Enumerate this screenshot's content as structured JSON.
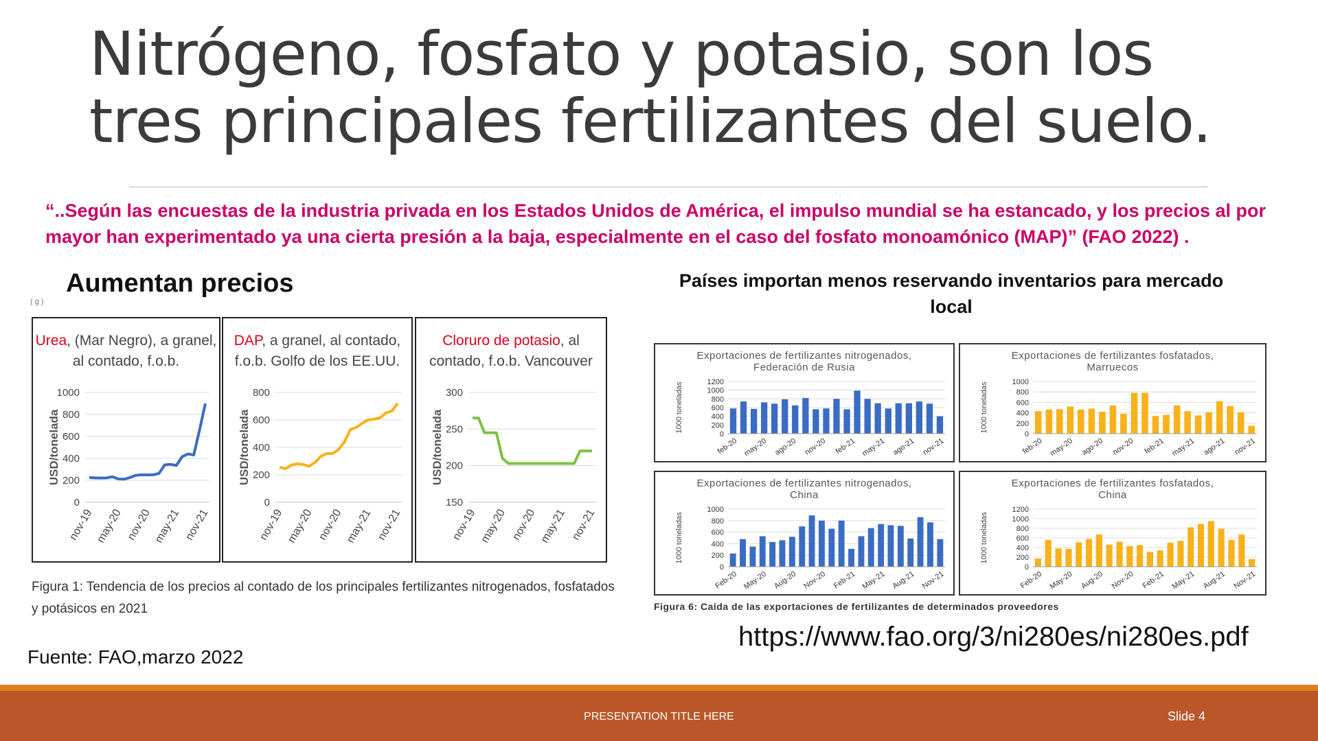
{
  "title": "Nitrógeno, fosfato y potasio, son los tres principales fertilizantes del suelo.",
  "quote": "“..Según las encuestas de la industria privada  en los Estados Unidos de América, el impulso mundial se ha estancado, y los precios al por mayor han experimentado ya una cierta presión a la baja, especialmente en el caso del fosfato monoamónico (MAP)” (FAO 2022) .",
  "left_heading": "Aumentan precios",
  "right_heading": "Países importan menos reservando inventarios para mercado local",
  "partial_mark": "( g   )",
  "left_caption": "Figura 1: Tendencia de los precios al contado de los principales fertilizantes nitrogenados, fosfatados y potásicos en 2021",
  "right_caption": "Figura 6: Caída de las exportaciones de fertilizantes de determinados proveedores",
  "url": "https://www.fao.org/3/ni280es/ni280es.pdf",
  "source": "Fuente: FAO,marzo 2022",
  "footer": {
    "title": "PRESENTATION TITLE HERE",
    "slide": "Slide 4"
  },
  "chart_data": [
    {
      "type": "line",
      "title_highlight": "Urea",
      "title_rest": ", (Mar Negro), a granel, al contado, f.o.b.",
      "ylabel": "USD/tonelada",
      "ylim": [
        0,
        1000
      ],
      "yticks": [
        "0",
        "200",
        "400",
        "600",
        "800",
        "1000"
      ],
      "xticks": [
        "nov-19",
        "may-20",
        "nov-20",
        "may-21",
        "nov-21"
      ],
      "color": "#3a6cc4",
      "values": [
        225,
        222,
        220,
        222,
        232,
        212,
        210,
        225,
        245,
        250,
        248,
        250,
        262,
        340,
        345,
        335,
        415,
        440,
        430,
        660,
        900
      ]
    },
    {
      "type": "line",
      "title_highlight": "DAP",
      "title_rest": ", a granel, al contado, f.o.b. Golfo de los EE.UU.",
      "ylabel": "USD/tonelada",
      "ylim": [
        0,
        800
      ],
      "yticks": [
        "0",
        "200",
        "400",
        "600",
        "800"
      ],
      "xticks": [
        "nov-19",
        "may-20",
        "nov-20",
        "may-21",
        "nov-21"
      ],
      "color": "#f7b21b",
      "values": [
        255,
        245,
        270,
        280,
        275,
        262,
        290,
        335,
        355,
        355,
        385,
        440,
        530,
        545,
        575,
        600,
        605,
        615,
        650,
        665,
        720
      ]
    },
    {
      "type": "line",
      "title_highlight": "Cloruro de potasio",
      "title_rest": ", al contado, f.o.b. Vancouver",
      "ylabel": "USD/tonelada",
      "ylim": [
        150,
        300
      ],
      "yticks": [
        "150",
        "200",
        "250",
        "300"
      ],
      "xticks": [
        "nov-19",
        "may-20",
        "nov-20",
        "may-21",
        "nov-21"
      ],
      "color": "#7cc242",
      "values": [
        265,
        265,
        245,
        245,
        245,
        210,
        203,
        203,
        203,
        203,
        203,
        203,
        203,
        203,
        203,
        203,
        203,
        203,
        220,
        220,
        220
      ]
    },
    {
      "type": "bar",
      "title": "Exportaciones de fertilizantes nitrogenados, Federación de Rusia",
      "ylabel": "1000 toneladas",
      "ylim": [
        0,
        1200
      ],
      "yticks": [
        "0",
        "200",
        "400",
        "600",
        "800",
        "1000",
        "1200"
      ],
      "xticks": [
        "feb-20",
        "may-20",
        "ago-20",
        "nov-20",
        "feb-21",
        "may-21",
        "ago-21",
        "nov-21"
      ],
      "color": "#3a6cc4",
      "values": [
        580,
        740,
        570,
        720,
        690,
        790,
        650,
        820,
        560,
        580,
        800,
        560,
        990,
        800,
        700,
        580,
        700,
        700,
        740,
        690,
        400
      ]
    },
    {
      "type": "bar",
      "title": "Exportaciones de fertilizantes fosfatados, Marruecos",
      "ylabel": "1000 toneladas",
      "ylim": [
        0,
        1000
      ],
      "yticks": [
        "0",
        "200",
        "400",
        "600",
        "800",
        "1000"
      ],
      "xticks": [
        "feb-20",
        "may-20",
        "ago-20",
        "nov-20",
        "feb-21",
        "may-21",
        "ago-21",
        "nov-21"
      ],
      "color": "#f7b21b",
      "values": [
        430,
        460,
        470,
        520,
        460,
        480,
        420,
        540,
        380,
        780,
        780,
        340,
        360,
        540,
        430,
        350,
        410,
        620,
        530,
        410,
        150
      ]
    },
    {
      "type": "bar",
      "title": "Exportaciones de fertilizantes nitrogenados, China",
      "ylabel": "1000 toneladas",
      "ylim": [
        0,
        1000
      ],
      "yticks": [
        "0",
        "200",
        "400",
        "600",
        "800",
        "1000"
      ],
      "xticks": [
        "Feb-20",
        "May-20",
        "Aug-20",
        "Nov-20",
        "Feb-21",
        "May-21",
        "Aug-21",
        "Nov-21"
      ],
      "color": "#3a6cc4",
      "values": [
        230,
        480,
        350,
        530,
        430,
        460,
        520,
        700,
        890,
        800,
        660,
        800,
        310,
        530,
        670,
        740,
        720,
        710,
        490,
        860,
        770,
        480
      ]
    },
    {
      "type": "bar",
      "title": "Exportaciones de fertilizantes fosfatados, China",
      "ylabel": "1000 toneladas",
      "ylim": [
        0,
        1200
      ],
      "yticks": [
        "0",
        "200",
        "400",
        "600",
        "800",
        "1000",
        "1200"
      ],
      "xticks": [
        "Feb-20",
        "May-20",
        "Aug-20",
        "Nov-20",
        "Feb-21",
        "May-21",
        "Aug-21",
        "Nov-21"
      ],
      "color": "#f7b21b",
      "values": [
        170,
        560,
        380,
        370,
        510,
        580,
        670,
        460,
        520,
        430,
        450,
        310,
        340,
        500,
        540,
        820,
        890,
        950,
        790,
        560,
        670,
        160
      ]
    }
  ]
}
